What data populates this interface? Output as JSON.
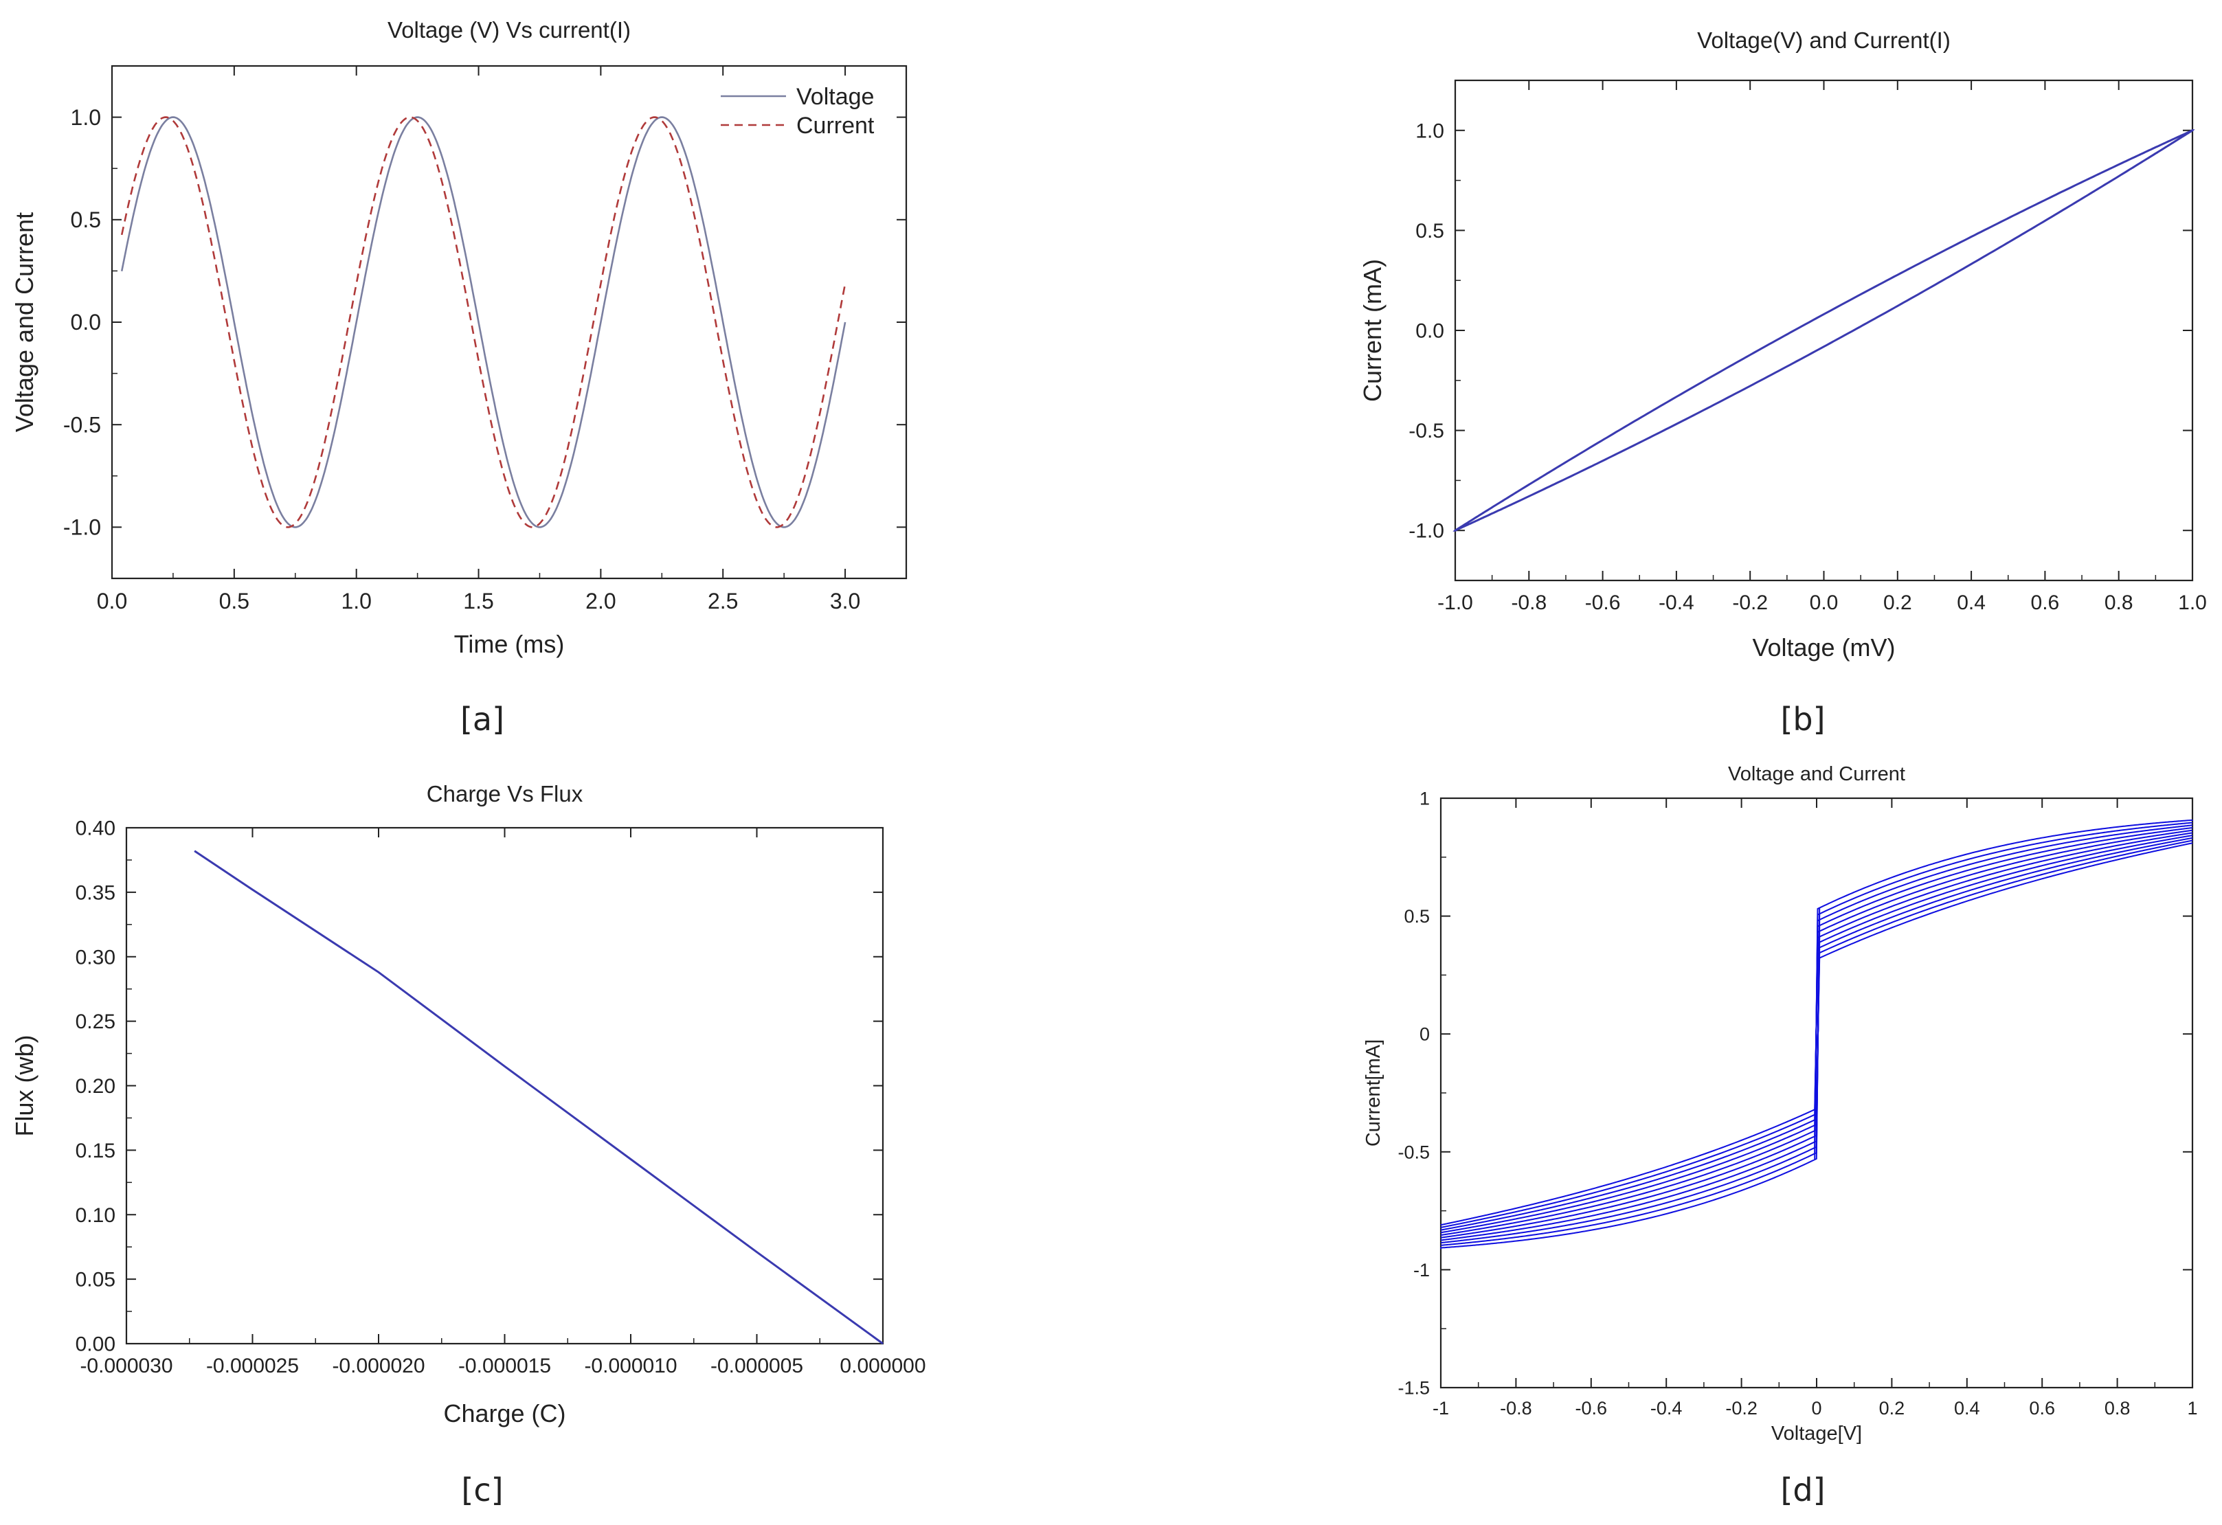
{
  "colors": {
    "voltage": "#7a7fa0",
    "current": "#b03a3a",
    "blue": "#3a3ab0",
    "bright_blue": "#1010e0",
    "axis": "#222222"
  },
  "chart_data": [
    {
      "id": "a",
      "panel_label": "[a]",
      "type": "line",
      "title": "Voltage (V) Vs current(I)",
      "xlabel": "Time (ms)",
      "ylabel": "Voltage and Current",
      "xlim": [
        0,
        3.25
      ],
      "ylim": [
        -1.25,
        1.25
      ],
      "xticks": [
        0.0,
        0.5,
        1.0,
        1.5,
        2.0,
        2.5,
        3.0
      ],
      "xticklabels": [
        "0.0",
        "0.5",
        "1.0",
        "1.5",
        "2.0",
        "2.5",
        "3.0"
      ],
      "yticks": [
        -1.0,
        -0.5,
        0.0,
        0.5,
        1.0
      ],
      "yticklabels": [
        "-1.0",
        "-0.5",
        "0.0",
        "0.5",
        "1.0"
      ],
      "legend": [
        "Voltage",
        "Current"
      ],
      "legend_position": "top-right",
      "series": [
        {
          "name": "Voltage",
          "style": "solid",
          "function": "sin(2*pi*t)",
          "x_range": [
            0.04,
            3.0
          ],
          "frequency_khz": 1.0,
          "amplitude": 1.0,
          "phase_shift_ms": 0.0
        },
        {
          "name": "Current",
          "style": "dashed",
          "function": "sin(2*pi*(t+0.03))",
          "x_range": [
            0.04,
            3.0
          ],
          "frequency_khz": 1.0,
          "amplitude": 1.0,
          "phase_shift_ms": -0.03
        }
      ]
    },
    {
      "id": "b",
      "panel_label": "[b]",
      "type": "line",
      "title": "Voltage(V) and Current(I)",
      "xlabel": "Voltage (mV)",
      "ylabel": "Current (mA)",
      "xlim": [
        -1.0,
        1.0
      ],
      "ylim": [
        -1.25,
        1.25
      ],
      "xticks": [
        -1.0,
        -0.8,
        -0.6,
        -0.4,
        -0.2,
        0.0,
        0.2,
        0.4,
        0.6,
        0.8,
        1.0
      ],
      "xticklabels": [
        "-1.0",
        "-0.8",
        "-0.6",
        "-0.4",
        "-0.2",
        "0.0",
        "0.2",
        "0.4",
        "0.6",
        "0.8",
        "1.0"
      ],
      "yticks": [
        -1.0,
        -0.5,
        0.0,
        0.5,
        1.0
      ],
      "yticklabels": [
        "-1.0",
        "-0.5",
        "0.0",
        "0.5",
        "1.0"
      ],
      "series": [
        {
          "name": "hysteresis loop",
          "shape": "pinched ellipse",
          "peak": [
            1.0,
            1.0
          ],
          "trough": [
            -1.0,
            -1.0
          ],
          "loop_width": 0.09
        }
      ]
    },
    {
      "id": "c",
      "panel_label": "[c]",
      "type": "line",
      "title": "Charge Vs Flux",
      "xlabel": "Charge (C)",
      "ylabel": "Flux (wb)",
      "xlim": [
        -3e-05,
        0.0
      ],
      "ylim": [
        0.0,
        0.4
      ],
      "xticks": [
        -3e-05,
        -2.5e-05,
        -2e-05,
        -1.5e-05,
        -1e-05,
        -5e-06,
        0.0
      ],
      "xticklabels": [
        "-0.000030",
        "-0.000025",
        "-0.000020",
        "-0.000015",
        "-0.000010",
        "-0.000005",
        "0.000000"
      ],
      "yticks": [
        0.0,
        0.05,
        0.1,
        0.15,
        0.2,
        0.25,
        0.3,
        0.35,
        0.4
      ],
      "yticklabels": [
        "0.00",
        "0.05",
        "0.10",
        "0.15",
        "0.20",
        "0.25",
        "0.30",
        "0.35",
        "0.40"
      ],
      "series": [
        {
          "name": "flux",
          "x": [
            -2.73e-05,
            -2.5e-05,
            -2e-05,
            -1.5e-05,
            -1e-05,
            -5e-06,
            0.0
          ],
          "y": [
            0.382,
            0.352,
            0.288,
            0.215,
            0.143,
            0.071,
            0.0
          ]
        }
      ]
    },
    {
      "id": "d",
      "panel_label": "[d]",
      "type": "line",
      "title": "Voltage and Current",
      "xlabel": "Voltage[V]",
      "ylabel": "Current[mA]",
      "xlim": [
        -1,
        1
      ],
      "ylim": [
        -1.5,
        1
      ],
      "xticks": [
        -1,
        -0.8,
        -0.6,
        -0.4,
        -0.2,
        0,
        0.2,
        0.4,
        0.6,
        0.8,
        1
      ],
      "xticklabels": [
        "-1",
        "-0.8",
        "-0.6",
        "-0.4",
        "-0.2",
        "0",
        "0.2",
        "0.4",
        "0.6",
        "0.8",
        "1"
      ],
      "yticks": [
        -1.5,
        -1,
        -0.5,
        0,
        0.5,
        1
      ],
      "yticklabels": [
        "-1.5",
        "-1",
        "-0.5",
        "0",
        "0.5",
        "1"
      ],
      "series": [
        {
          "name": "pinched hysteresis loops",
          "loop_count": 10,
          "peak_current": [
            0.95,
            1.0
          ],
          "lower_branch_slope": 0.9,
          "upper_branch_shape": "s-curve"
        }
      ]
    }
  ]
}
